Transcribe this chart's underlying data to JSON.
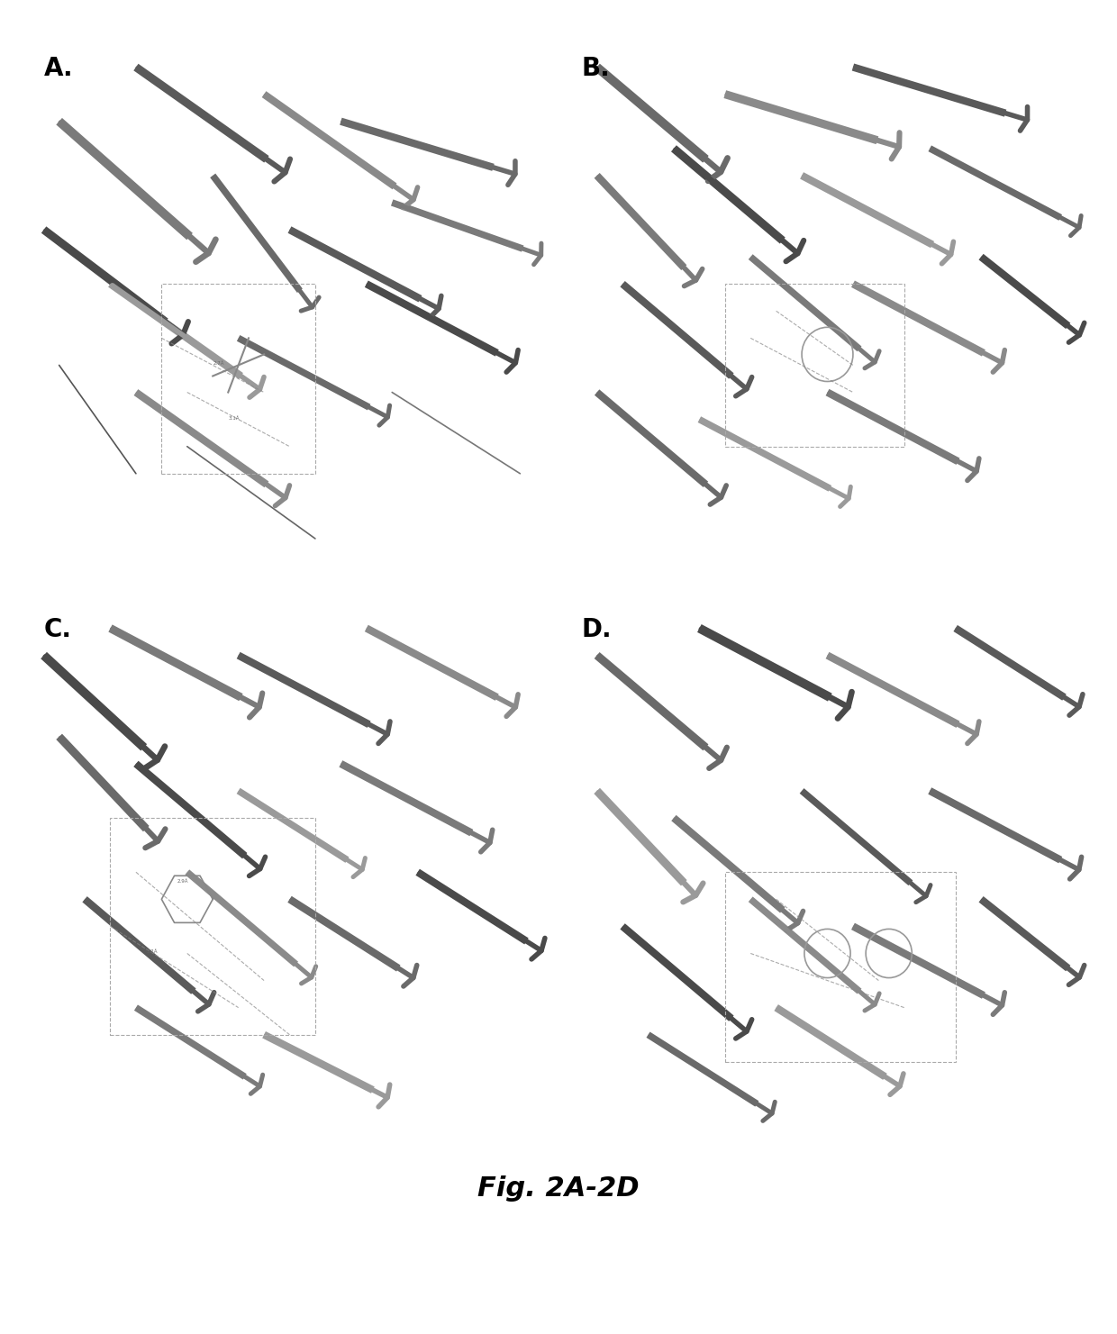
{
  "title": "Fig. 2A-2D",
  "panel_labels": [
    "A.",
    "B.",
    "C.",
    "D."
  ],
  "label_fontsize": 20,
  "title_fontsize": 22,
  "background_color": "#ffffff",
  "panel_bg": "#f5f5f5",
  "figure_width": 12.4,
  "figure_height": 14.81,
  "title_style": "italic",
  "title_weight": "bold"
}
